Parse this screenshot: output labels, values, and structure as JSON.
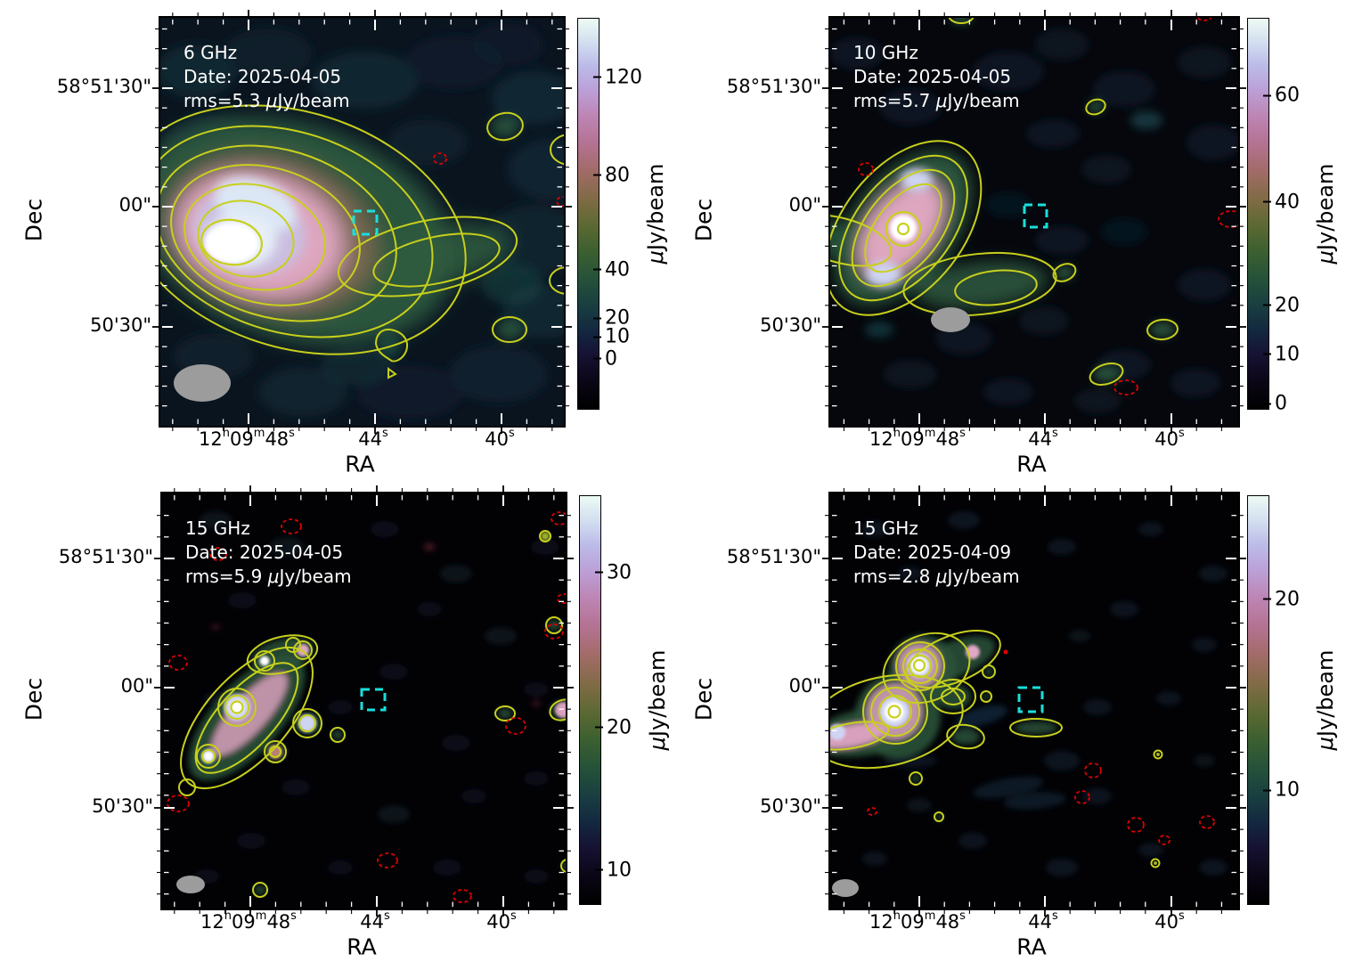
{
  "figure": {
    "type": "radio continuum image grid",
    "panel_count": 4
  },
  "colors": {
    "positive_contour": "#c8d01c",
    "negative_contour": "#e10000",
    "source_marker": "#18e0dc",
    "beam": "#9c9c9c",
    "annotation_text": "#ffffff",
    "axis_text": "#000000",
    "colormap_bottom_to_top": [
      "#000000",
      "#161233",
      "#132840",
      "#183d41",
      "#24513a",
      "#3a5f30",
      "#5c6933",
      "#816b46",
      "#a26b68",
      "#b47292",
      "#bd85b4",
      "#bba1d8",
      "#bcbbe8",
      "#cfd9ef",
      "#edfbf4"
    ]
  },
  "panels": [
    {
      "annotation": {
        "freq": "6 GHz",
        "date": "Date: 2025-04-05",
        "rms": "rms=5.3 μJy/beam"
      },
      "xlabel": "RA",
      "ylabel": "Dec",
      "xticks": [
        "12{h}09{m}48{s}",
        "44{s}",
        "40{s}"
      ],
      "yticks": [
        "58°51'30\"",
        "00\"",
        "50'30\""
      ],
      "colorbar": {
        "label": "μJy/beam",
        "ticks": [
          "120",
          "80",
          "40",
          "20",
          "10",
          "0"
        ]
      }
    },
    {
      "annotation": {
        "freq": "10 GHz",
        "date": "Date: 2025-04-05",
        "rms": "rms=5.7 μJy/beam"
      },
      "xlabel": "RA",
      "ylabel": "Dec",
      "xticks": [
        "12{h}09{m}48{s}",
        "44{s}",
        "40{s}"
      ],
      "yticks": [
        "58°51'30\"",
        "00\"",
        "50'30\""
      ],
      "colorbar": {
        "label": "μJy/beam",
        "ticks": [
          "60",
          "40",
          "20",
          "10",
          "0"
        ]
      }
    },
    {
      "annotation": {
        "freq": "15 GHz",
        "date": "Date: 2025-04-05",
        "rms": "rms=5.9 μJy/beam"
      },
      "xlabel": "RA",
      "ylabel": "Dec",
      "xticks": [
        "12{h}09{m}48{s}",
        "44{s}",
        "40{s}"
      ],
      "yticks": [
        "58°51'30\"",
        "00\"",
        "50'30\""
      ],
      "colorbar": {
        "label": "μJy/beam",
        "ticks": [
          "30",
          "20",
          "10"
        ]
      }
    },
    {
      "annotation": {
        "freq": "15 GHz",
        "date": "Date: 2025-04-09",
        "rms": "rms=2.8 μJy/beam"
      },
      "xlabel": "RA",
      "ylabel": "Dec",
      "xticks": [
        "12{h}09{m}48{s}",
        "44{s}",
        "40{s}"
      ],
      "yticks": [
        "58°51'30\"",
        "00\"",
        "50'30\""
      ],
      "colorbar": {
        "label": "μJy/beam",
        "ticks": [
          "20",
          "10"
        ]
      }
    }
  ],
  "chart_data": {
    "type": "heatmap",
    "description": "2x2 grid of radio continuum maps of the same field at different frequencies/epochs. Colorscale images with solid yellow positive contours, dashed red negative contours, a dashed cyan square marking the target position, and the synthesized beam shown as a grey filled ellipse at lower left of each panel.",
    "panels": [
      {
        "frequency": "6 GHz",
        "date": "2025-04-05",
        "rms_uJy_per_beam": 5.3,
        "colorbar_ticks_uJy_per_beam": [
          120,
          80,
          40,
          20,
          10,
          0
        ],
        "morphology": "bright extended source at east with elongated low-level tail toward the west"
      },
      {
        "frequency": "10 GHz",
        "date": "2025-04-05",
        "rms_uJy_per_beam": 5.7,
        "colorbar_ticks_uJy_per_beam": [
          60,
          40,
          20,
          10,
          0
        ],
        "morphology": "compact bright knot with NE-SW elongation and short western extension"
      },
      {
        "frequency": "15 GHz",
        "date": "2025-04-05",
        "rms_uJy_per_beam": 5.9,
        "colorbar_ticks_uJy_per_beam": [
          30,
          20,
          10
        ],
        "morphology": "source resolved into a chain of compact knots; mostly empty noise field"
      },
      {
        "frequency": "15 GHz",
        "date": "2025-04-09",
        "rms_uJy_per_beam": 2.8,
        "colorbar_ticks_uJy_per_beam": [
          20,
          10
        ],
        "morphology": "two bright compact knots with surrounding faint contoured emission"
      }
    ],
    "shared_axes": {
      "xlabel": "RA",
      "ylabel": "Dec",
      "xtick_labels": [
        "12h09m48s",
        "44s",
        "40s"
      ],
      "ytick_labels": [
        "58°51'30\"",
        "00\"",
        "50'30\""
      ]
    },
    "colorbar_label": "μJy/beam",
    "colorbar_scale": "non-linear stretch (tick spacing compresses toward high values)"
  }
}
